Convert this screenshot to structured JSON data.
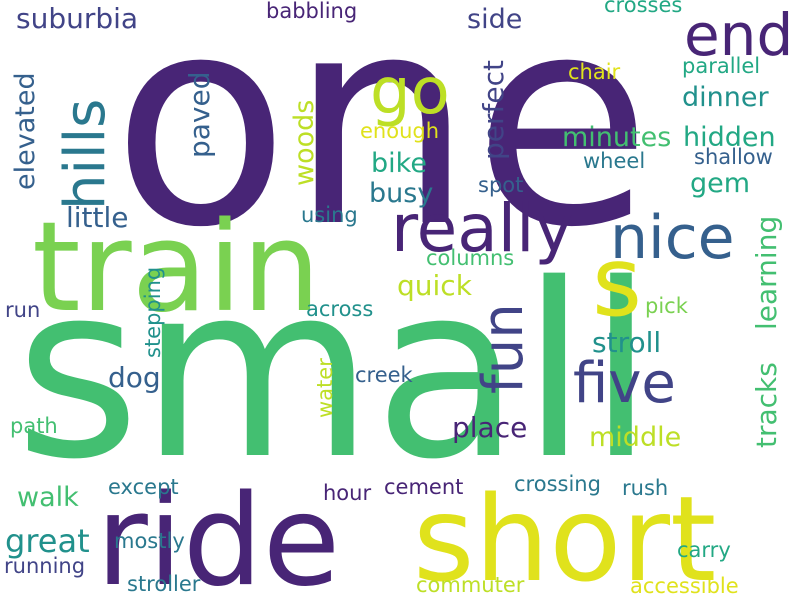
{
  "palette": {
    "dark_purple": "#482576",
    "violet": "#414487",
    "blue": "#35608d",
    "teal_blue": "#2a788e",
    "teal": "#21918c",
    "sea_green": "#22a884",
    "green": "#43bf71",
    "light_green": "#7ad151",
    "yellow_green": "#bddf26",
    "yellow": "#e0e21c"
  },
  "words": {
    "one": "one",
    "small": "small",
    "train": "train",
    "ride": "ride",
    "short": "short",
    "really": "really",
    "nice": "nice",
    "end": "end",
    "hills": "hills",
    "go": "go",
    "s": "s",
    "five": "five",
    "fun": "fun",
    "suburbia": "suburbia",
    "babbling": "babbling",
    "side": "side",
    "crosses": "crosses",
    "perfect": "perfect",
    "chair": "chair",
    "parallel": "parallel",
    "dinner": "dinner",
    "elevated": "elevated",
    "paved": "paved",
    "enough": "enough",
    "minutes": "minutes",
    "hidden": "hidden",
    "woods": "woods",
    "bike": "bike",
    "wheel": "wheel",
    "shallow": "shallow",
    "gem": "gem",
    "busy": "busy",
    "spot": "spot",
    "little": "little",
    "using": "using",
    "columns": "columns",
    "quick": "quick",
    "learning": "learning",
    "tracks": "tracks",
    "pick": "pick",
    "stroll": "stroll",
    "stepping": "stepping",
    "run": "run",
    "across": "across",
    "dog": "dog",
    "creek": "creek",
    "water": "water",
    "place": "place",
    "middle": "middle",
    "path": "path",
    "walk": "walk",
    "except": "except",
    "hour": "hour",
    "cement": "cement",
    "crossing": "crossing",
    "rush": "rush",
    "great": "great",
    "mostly": "mostly",
    "carry": "carry",
    "running": "running",
    "stroller": "stroller",
    "commuter": "commuter",
    "accessible": "accessible"
  }
}
